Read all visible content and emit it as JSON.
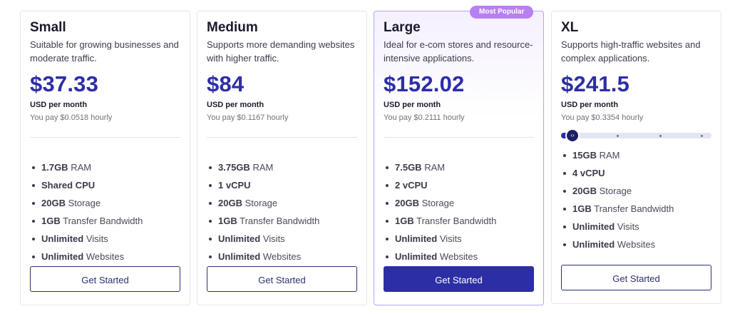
{
  "badge_label": "Most Popular",
  "button_label": "Get Started",
  "colors": {
    "accent": "#2c2ea6",
    "badge": "#b87ff2",
    "popular_border": "#b7a4f0"
  },
  "slider": {
    "value_fraction": 0.0,
    "stops": 4
  },
  "plans": [
    {
      "name": "Small",
      "description": "Suitable for growing businesses and moderate traffic.",
      "price": "$37.33",
      "period": "USD per month",
      "hourly": "You pay $0.0518 hourly",
      "features": [
        {
          "value": "1.7GB",
          "label": "RAM"
        },
        {
          "value": "Shared CPU",
          "label": ""
        },
        {
          "value": "20GB",
          "label": "Storage"
        },
        {
          "value": "1GB",
          "label": "Transfer Bandwidth"
        },
        {
          "value": "Unlimited",
          "label": "Visits"
        },
        {
          "value": "Unlimited",
          "label": "Websites"
        }
      ]
    },
    {
      "name": "Medium",
      "description": "Supports more demanding websites with higher traffic.",
      "price": "$84",
      "period": "USD per month",
      "hourly": "You pay $0.1167 hourly",
      "features": [
        {
          "value": "3.75GB",
          "label": "RAM"
        },
        {
          "value": "1 vCPU",
          "label": ""
        },
        {
          "value": "20GB",
          "label": "Storage"
        },
        {
          "value": "1GB",
          "label": "Transfer Bandwidth"
        },
        {
          "value": "Unlimited",
          "label": "Visits"
        },
        {
          "value": "Unlimited",
          "label": "Websites"
        }
      ]
    },
    {
      "name": "Large",
      "description": "Ideal for e-com stores and resource-intensive applications.",
      "price": "$152.02",
      "period": "USD per month",
      "hourly": "You pay $0.2111 hourly",
      "features": [
        {
          "value": "7.5GB",
          "label": "RAM"
        },
        {
          "value": "2 vCPU",
          "label": ""
        },
        {
          "value": "20GB",
          "label": "Storage"
        },
        {
          "value": "1GB",
          "label": "Transfer Bandwidth"
        },
        {
          "value": "Unlimited",
          "label": "Visits"
        },
        {
          "value": "Unlimited",
          "label": "Websites"
        }
      ]
    },
    {
      "name": "XL",
      "description": "Supports high-traffic websites and complex applications.",
      "price": "$241.5",
      "period": "USD per month",
      "hourly": "You pay $0.3354 hourly",
      "features": [
        {
          "value": "15GB",
          "label": "RAM"
        },
        {
          "value": "4 vCPU",
          "label": ""
        },
        {
          "value": "20GB",
          "label": "Storage"
        },
        {
          "value": "1GB",
          "label": "Transfer Bandwidth"
        },
        {
          "value": "Unlimited",
          "label": "Visits"
        },
        {
          "value": "Unlimited",
          "label": "Websites"
        }
      ]
    }
  ]
}
